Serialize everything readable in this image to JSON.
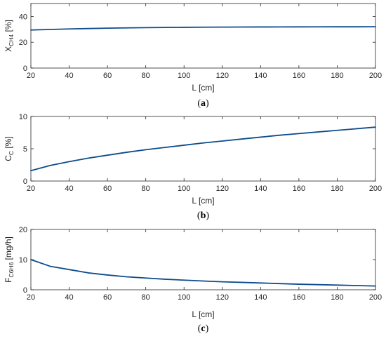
{
  "colors": {
    "series": "#0d4c8c",
    "axis": "#262626",
    "background": "#ffffff"
  },
  "chart_data": [
    {
      "type": "line",
      "panel": "a",
      "caption": {
        "open": "(",
        "letter": "a",
        "close": ")"
      },
      "ylabel": {
        "main": "X",
        "sub": "CH4",
        "unit": " [%]"
      },
      "xlabel": "L [cm]",
      "xlim": [
        20,
        200
      ],
      "ylim": [
        0,
        50
      ],
      "xticks": [
        20,
        40,
        60,
        80,
        100,
        120,
        140,
        160,
        180,
        200
      ],
      "yticks": [
        0,
        20,
        40
      ],
      "grid": false,
      "series": [
        {
          "x": [
            20,
            30,
            40,
            50,
            60,
            70,
            80,
            90,
            100,
            110,
            120,
            130,
            140,
            150,
            160,
            170,
            180,
            190,
            200
          ],
          "y": [
            29.5,
            29.9,
            30.3,
            30.6,
            30.9,
            31.1,
            31.3,
            31.45,
            31.55,
            31.65,
            31.72,
            31.78,
            31.82,
            31.86,
            31.9,
            31.93,
            31.95,
            31.97,
            32.0
          ]
        }
      ]
    },
    {
      "type": "line",
      "panel": "b",
      "caption": {
        "open": "(",
        "letter": "b",
        "close": ")"
      },
      "ylabel": {
        "main": "C",
        "sub": "C",
        "unit": " [%]"
      },
      "xlabel": "L [cm]",
      "xlim": [
        20,
        200
      ],
      "ylim": [
        0,
        10
      ],
      "xticks": [
        20,
        40,
        60,
        80,
        100,
        120,
        140,
        160,
        180,
        200
      ],
      "yticks": [
        0,
        5,
        10
      ],
      "grid": false,
      "series": [
        {
          "x": [
            20,
            30,
            40,
            50,
            60,
            70,
            80,
            90,
            100,
            110,
            120,
            130,
            140,
            150,
            160,
            170,
            180,
            190,
            200
          ],
          "y": [
            1.6,
            2.4,
            3.0,
            3.55,
            4.0,
            4.45,
            4.85,
            5.2,
            5.55,
            5.9,
            6.2,
            6.5,
            6.8,
            7.1,
            7.35,
            7.6,
            7.85,
            8.1,
            8.35
          ]
        }
      ]
    },
    {
      "type": "line",
      "panel": "c",
      "caption": {
        "open": "(",
        "letter": "c",
        "close": ")"
      },
      "ylabel": {
        "main": "F",
        "sub": "C6H6",
        "unit": " [mg/h]"
      },
      "xlabel": "L [cm]",
      "xlim": [
        20,
        200
      ],
      "ylim": [
        0,
        20
      ],
      "xticks": [
        20,
        40,
        60,
        80,
        100,
        120,
        140,
        160,
        180,
        200
      ],
      "yticks": [
        0,
        10,
        20
      ],
      "grid": false,
      "series": [
        {
          "x": [
            20,
            30,
            40,
            50,
            60,
            70,
            80,
            90,
            100,
            110,
            120,
            130,
            140,
            150,
            160,
            170,
            180,
            190,
            200
          ],
          "y": [
            10.0,
            7.8,
            6.7,
            5.6,
            4.9,
            4.3,
            3.9,
            3.5,
            3.2,
            2.9,
            2.65,
            2.45,
            2.25,
            2.05,
            1.85,
            1.7,
            1.55,
            1.4,
            1.25
          ]
        }
      ]
    }
  ]
}
